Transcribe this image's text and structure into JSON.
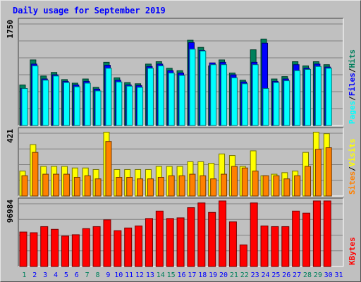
{
  "title": "Daily usage for September 2019",
  "colors": {
    "hits": "#00805c",
    "files": "#0000ff",
    "pages": "#00ffff",
    "visits": "#ffff00",
    "sites": "#ff8000",
    "kbytes": "#ff0000",
    "weekend_day_label": "#00805c",
    "weekday_label": "#0000ff",
    "panel_bg": "#c0c0c0"
  },
  "chart_data": [
    {
      "type": "bar",
      "panel": "hits-files-pages",
      "ymax_label": "1750",
      "legend": [
        "Pages",
        "Files",
        "Hits"
      ],
      "categories": [
        "1",
        "2",
        "3",
        "4",
        "5",
        "6",
        "7",
        "8",
        "9",
        "10",
        "11",
        "12",
        "13",
        "14",
        "15",
        "16",
        "17",
        "18",
        "19",
        "20",
        "21",
        "22",
        "23",
        "24",
        "25",
        "26",
        "27",
        "28",
        "29",
        "30",
        "31"
      ],
      "ymax": 1750,
      "series": [
        {
          "name": "Hits",
          "values": [
            680,
            1100,
            830,
            890,
            770,
            710,
            780,
            640,
            1060,
            800,
            720,
            700,
            1030,
            1070,
            960,
            920,
            1430,
            1310,
            1000,
            1100,
            880,
            760,
            1270,
            1450,
            780,
            820,
            1070,
            1000,
            1070,
            1020,
            0
          ]
        },
        {
          "name": "Files",
          "values": [
            620,
            1030,
            780,
            850,
            740,
            680,
            740,
            610,
            1010,
            760,
            680,
            670,
            990,
            1030,
            920,
            880,
            1390,
            1260,
            1050,
            1060,
            850,
            730,
            1060,
            1380,
            740,
            780,
            1020,
            960,
            1030,
            980,
            0
          ]
        },
        {
          "name": "Pages",
          "values": [
            620,
            1000,
            760,
            830,
            720,
            650,
            710,
            580,
            960,
            730,
            660,
            640,
            960,
            1000,
            880,
            840,
            1280,
            1250,
            1020,
            1020,
            800,
            700,
            1020,
            620,
            720,
            750,
            920,
            940,
            990,
            960,
            0
          ]
        }
      ]
    },
    {
      "type": "bar",
      "panel": "visits-sites",
      "ymax_label": "421",
      "legend": [
        "Sites",
        "Visits"
      ],
      "categories": [
        "1",
        "2",
        "3",
        "4",
        "5",
        "6",
        "7",
        "8",
        "9",
        "10",
        "11",
        "12",
        "13",
        "14",
        "15",
        "16",
        "17",
        "18",
        "19",
        "20",
        "21",
        "22",
        "23",
        "24",
        "25",
        "26",
        "27",
        "28",
        "29",
        "30",
        "31"
      ],
      "ymax": 421,
      "series": [
        {
          "name": "Visits",
          "values": [
            160,
            330,
            190,
            190,
            190,
            180,
            180,
            170,
            410,
            170,
            170,
            170,
            170,
            190,
            190,
            190,
            220,
            220,
            210,
            270,
            260,
            190,
            290,
            130,
            140,
            150,
            160,
            280,
            410,
            400,
            0
          ]
        },
        {
          "name": "Sites",
          "values": [
            130,
            280,
            140,
            140,
            140,
            120,
            130,
            110,
            350,
            120,
            120,
            110,
            110,
            120,
            130,
            130,
            140,
            130,
            110,
            140,
            190,
            180,
            160,
            130,
            130,
            110,
            130,
            190,
            300,
            310,
            0
          ]
        }
      ]
    },
    {
      "type": "bar",
      "panel": "kbytes",
      "ymax_label": "96984",
      "legend": [
        "KBytes"
      ],
      "categories": [
        "1",
        "2",
        "3",
        "4",
        "5",
        "6",
        "7",
        "8",
        "9",
        "10",
        "11",
        "12",
        "13",
        "14",
        "15",
        "16",
        "17",
        "18",
        "19",
        "20",
        "21",
        "22",
        "23",
        "24",
        "25",
        "26",
        "27",
        "28",
        "29",
        "30",
        "31"
      ],
      "ymax": 96984,
      "series": [
        {
          "name": "KBytes",
          "values": [
            51000,
            50000,
            59000,
            55000,
            45000,
            47000,
            56000,
            59000,
            69000,
            53000,
            57000,
            60000,
            71000,
            82000,
            71000,
            72000,
            87000,
            94000,
            80000,
            105000,
            66000,
            32000,
            94000,
            60000,
            59000,
            59000,
            82000,
            79000,
            115000,
            105000,
            0
          ]
        }
      ]
    }
  ],
  "x_labels": [
    "1",
    "2",
    "3",
    "4",
    "5",
    "6",
    "7",
    "8",
    "9",
    "10",
    "11",
    "12",
    "13",
    "14",
    "15",
    "16",
    "17",
    "18",
    "19",
    "20",
    "21",
    "22",
    "23",
    "24",
    "25",
    "26",
    "27",
    "28",
    "29",
    "30",
    "31"
  ],
  "weekend_days": [
    "1",
    "7",
    "8",
    "14",
    "15",
    "21",
    "22",
    "28",
    "29"
  ]
}
